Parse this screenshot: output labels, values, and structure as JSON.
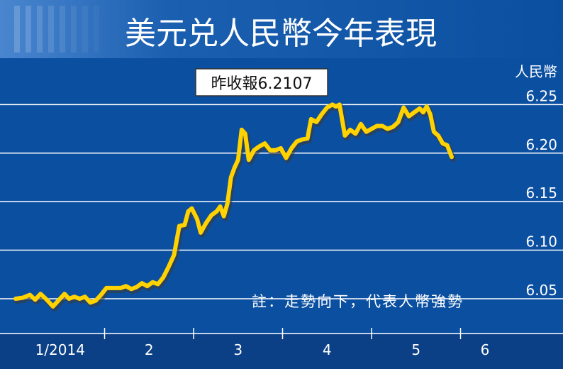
{
  "colors": {
    "background": "#0b4fa0",
    "title_band": "#0a3f86",
    "grid": "#ffffff",
    "line": "#ffd200",
    "line_shadow": "#3a3a3a",
    "text": "#ffffff",
    "axis_band": "#0b3f86"
  },
  "chart_data": {
    "type": "line",
    "title": "美元兑人民幣今年表現",
    "ylabel": "人民幣",
    "callout": "昨收報6.2107",
    "note": "註：走勢向下，代表人幣強勢",
    "ylim": [
      6.02,
      6.27
    ],
    "yticks": [
      {
        "value": 6.25,
        "label": "6.25"
      },
      {
        "value": 6.2,
        "label": "6.20"
      },
      {
        "value": 6.15,
        "label": "6.15"
      },
      {
        "value": 6.1,
        "label": "6.10"
      },
      {
        "value": 6.05,
        "label": "6.05"
      }
    ],
    "months": [
      {
        "label": "1/2014",
        "start": 0.0,
        "end": 1.0
      },
      {
        "label": "2",
        "start": 1.0,
        "end": 2.0
      },
      {
        "label": "3",
        "start": 2.0,
        "end": 3.0
      },
      {
        "label": "4",
        "start": 3.0,
        "end": 4.0
      },
      {
        "label": "5",
        "start": 4.0,
        "end": 5.0
      },
      {
        "label": "6",
        "start": 5.0,
        "end": 5.55
      }
    ],
    "series": [
      {
        "points": [
          [
            0.0,
            6.05
          ],
          [
            0.08,
            6.051
          ],
          [
            0.16,
            6.054
          ],
          [
            0.22,
            6.049
          ],
          [
            0.28,
            6.055
          ],
          [
            0.35,
            6.049
          ],
          [
            0.42,
            6.042
          ],
          [
            0.48,
            6.048
          ],
          [
            0.55,
            6.055
          ],
          [
            0.6,
            6.05
          ],
          [
            0.66,
            6.052
          ],
          [
            0.72,
            6.05
          ],
          [
            0.78,
            6.052
          ],
          [
            0.84,
            6.046
          ],
          [
            0.9,
            6.048
          ],
          [
            0.96,
            6.054
          ],
          [
            1.02,
            6.061
          ],
          [
            1.1,
            6.061
          ],
          [
            1.18,
            6.061
          ],
          [
            1.24,
            6.063
          ],
          [
            1.3,
            6.06
          ],
          [
            1.36,
            6.062
          ],
          [
            1.42,
            6.066
          ],
          [
            1.48,
            6.063
          ],
          [
            1.54,
            6.067
          ],
          [
            1.6,
            6.065
          ],
          [
            1.66,
            6.072
          ],
          [
            1.72,
            6.083
          ],
          [
            1.78,
            6.095
          ],
          [
            1.84,
            6.125
          ],
          [
            1.9,
            6.126
          ],
          [
            1.94,
            6.14
          ],
          [
            1.98,
            6.143
          ],
          [
            2.04,
            6.132
          ],
          [
            2.08,
            6.118
          ],
          [
            2.14,
            6.128
          ],
          [
            2.2,
            6.136
          ],
          [
            2.26,
            6.14
          ],
          [
            2.3,
            6.145
          ],
          [
            2.34,
            6.135
          ],
          [
            2.38,
            6.148
          ],
          [
            2.42,
            6.175
          ],
          [
            2.46,
            6.185
          ],
          [
            2.5,
            6.193
          ],
          [
            2.54,
            6.224
          ],
          [
            2.58,
            6.22
          ],
          [
            2.62,
            6.193
          ],
          [
            2.68,
            6.203
          ],
          [
            2.74,
            6.207
          ],
          [
            2.8,
            6.21
          ],
          [
            2.86,
            6.203
          ],
          [
            2.92,
            6.203
          ],
          [
            2.98,
            6.205
          ],
          [
            3.04,
            6.195
          ],
          [
            3.1,
            6.205
          ],
          [
            3.16,
            6.212
          ],
          [
            3.22,
            6.214
          ],
          [
            3.28,
            6.215
          ],
          [
            3.32,
            6.235
          ],
          [
            3.38,
            6.232
          ],
          [
            3.44,
            6.24
          ],
          [
            3.5,
            6.247
          ],
          [
            3.56,
            6.25
          ],
          [
            3.6,
            6.248
          ],
          [
            3.64,
            6.25
          ],
          [
            3.7,
            6.218
          ],
          [
            3.76,
            6.224
          ],
          [
            3.82,
            6.22
          ],
          [
            3.88,
            6.23
          ],
          [
            3.94,
            6.222
          ],
          [
            4.0,
            6.225
          ],
          [
            4.06,
            6.228
          ],
          [
            4.12,
            6.228
          ],
          [
            4.18,
            6.225
          ],
          [
            4.24,
            6.227
          ],
          [
            4.3,
            6.232
          ],
          [
            4.36,
            6.247
          ],
          [
            4.42,
            6.238
          ],
          [
            4.48,
            6.242
          ],
          [
            4.54,
            6.246
          ],
          [
            4.58,
            6.242
          ],
          [
            4.62,
            6.248
          ],
          [
            4.66,
            6.24
          ],
          [
            4.7,
            6.222
          ],
          [
            4.75,
            6.218
          ],
          [
            4.8,
            6.21
          ],
          [
            4.85,
            6.208
          ],
          [
            4.9,
            6.196
          ]
        ]
      }
    ]
  }
}
